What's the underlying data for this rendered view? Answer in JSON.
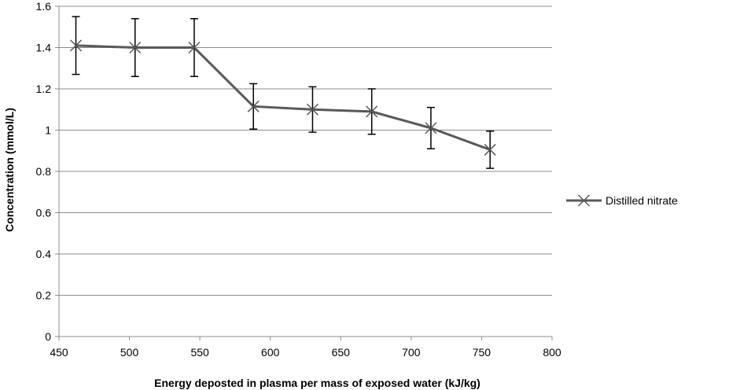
{
  "chart_data": {
    "type": "line",
    "title": "",
    "xlabel": "Energy deposted in plasma per mass of exposed water (kJ/kg)",
    "ylabel": "Concentration (mmol/L)",
    "xlim": [
      450,
      800
    ],
    "ylim": [
      0,
      1.6
    ],
    "x_ticks": [
      450,
      500,
      550,
      600,
      650,
      700,
      750,
      800
    ],
    "y_ticks": [
      0,
      0.2,
      0.4,
      0.6,
      0.8,
      1,
      1.2,
      1.4,
      1.6
    ],
    "x_tick_labels": [
      "450",
      "500",
      "550",
      "600",
      "650",
      "700",
      "750",
      "800"
    ],
    "y_tick_labels": [
      "0",
      "0.2",
      "0.4",
      "0.6",
      "0.8",
      "1",
      "1.2",
      "1.4",
      "1.6"
    ],
    "grid": {
      "horizontal": true,
      "vertical": false
    },
    "legend": "right",
    "series": [
      {
        "name": "Distilled nitrate",
        "color": "#595959",
        "marker": "x",
        "x": [
          462,
          504,
          546,
          588,
          630,
          672,
          714,
          756
        ],
        "y": [
          1.41,
          1.4,
          1.4,
          1.115,
          1.1,
          1.09,
          1.01,
          0.905
        ],
        "error": [
          0.14,
          0.14,
          0.14,
          0.11,
          0.11,
          0.11,
          0.1,
          0.09
        ]
      }
    ]
  }
}
